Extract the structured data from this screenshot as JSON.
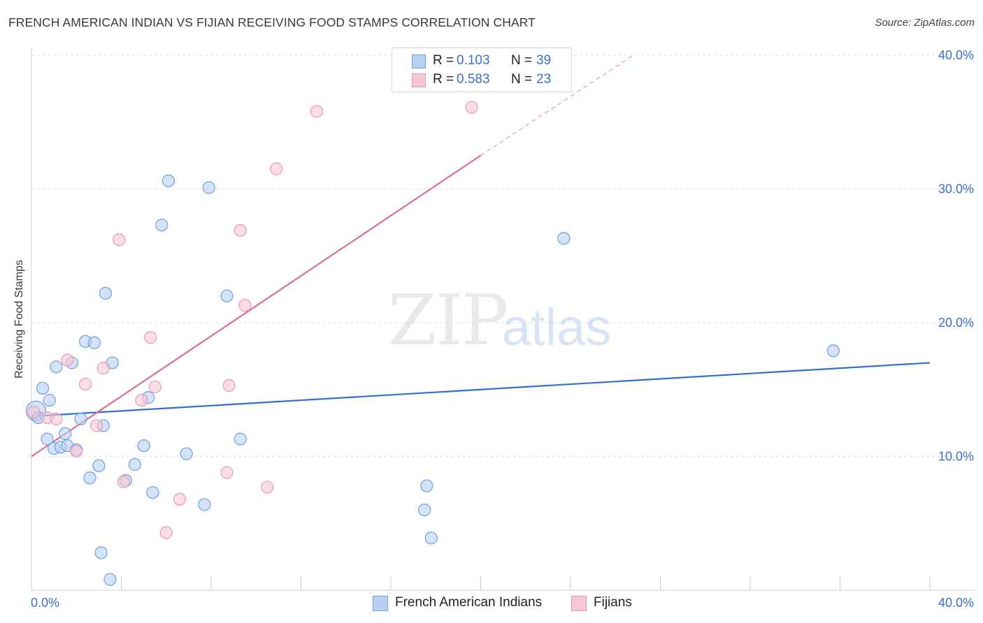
{
  "title": "FRENCH AMERICAN INDIAN VS FIJIAN RECEIVING FOOD STAMPS CORRELATION CHART",
  "source": "Source: ZipAtlas.com",
  "watermark": {
    "zip": "ZIP",
    "atlas": "atlas"
  },
  "legend_top": {
    "rows": [
      {
        "r_label": "R =",
        "r_value": "0.103",
        "n_label": "N =",
        "n_value": "39"
      },
      {
        "r_label": "R =",
        "r_value": "0.583",
        "n_label": "N =",
        "n_value": "23"
      }
    ]
  },
  "legend_bottom": {
    "items": [
      {
        "label": "French American Indians"
      },
      {
        "label": "Fijians"
      }
    ]
  },
  "colors": {
    "blue_fill": "#b7d1f2",
    "blue_stroke": "#6f9fdc",
    "blue_line": "#2f6fd0",
    "pink_fill": "#f7c6d6",
    "pink_stroke": "#e89ab3",
    "pink_line": "#e06b93",
    "grid": "#dddddd",
    "axis_label": "#3b6fc9"
  },
  "chart_data": {
    "type": "scatter",
    "title": "FRENCH AMERICAN INDIAN VS FIJIAN RECEIVING FOOD STAMPS CORRELATION CHART",
    "xlabel": "",
    "ylabel": "Receiving Food Stamps",
    "xlim": [
      0,
      40
    ],
    "ylim": [
      0,
      40
    ],
    "x_tick_labels": [
      "0.0%",
      "40.0%"
    ],
    "y_ticks": [
      10,
      20,
      30,
      40
    ],
    "y_tick_labels": [
      "10.0%",
      "20.0%",
      "30.0%",
      "40.0%"
    ],
    "series": [
      {
        "name": "French American Indians",
        "r": 0.103,
        "n": 39,
        "trend": {
          "x0": 0,
          "y0": 13.0,
          "x1": 40,
          "y1": 17.0
        },
        "points": [
          [
            0.2,
            13.4
          ],
          [
            0.3,
            12.9
          ],
          [
            0.5,
            15.1
          ],
          [
            0.7,
            11.3
          ],
          [
            0.8,
            14.2
          ],
          [
            1.0,
            10.6
          ],
          [
            1.1,
            16.7
          ],
          [
            1.3,
            10.7
          ],
          [
            1.5,
            11.7
          ],
          [
            1.6,
            10.8
          ],
          [
            1.8,
            17.0
          ],
          [
            2.0,
            10.5
          ],
          [
            2.2,
            12.8
          ],
          [
            2.4,
            18.6
          ],
          [
            2.6,
            8.4
          ],
          [
            2.8,
            18.5
          ],
          [
            3.0,
            9.3
          ],
          [
            3.1,
            2.8
          ],
          [
            3.2,
            12.3
          ],
          [
            3.3,
            22.2
          ],
          [
            3.5,
            0.8
          ],
          [
            3.6,
            17.0
          ],
          [
            4.2,
            8.2
          ],
          [
            4.6,
            9.4
          ],
          [
            5.0,
            10.8
          ],
          [
            5.2,
            14.4
          ],
          [
            5.4,
            7.3
          ],
          [
            5.8,
            27.3
          ],
          [
            6.1,
            30.6
          ],
          [
            6.9,
            10.2
          ],
          [
            7.7,
            6.4
          ],
          [
            7.9,
            30.1
          ],
          [
            8.7,
            22.0
          ],
          [
            9.3,
            11.3
          ],
          [
            17.5,
            6.0
          ],
          [
            17.6,
            7.8
          ],
          [
            17.8,
            3.9
          ],
          [
            23.7,
            26.3
          ],
          [
            35.7,
            17.9
          ]
        ]
      },
      {
        "name": "Fijians",
        "r": 0.583,
        "n": 23,
        "trend": {
          "x0": 0,
          "y0": 10.0,
          "x1": 20,
          "y1": 32.5,
          "x_dash_end": 26.8,
          "y_dash_end": 40.0
        },
        "points": [
          [
            0.1,
            13.3
          ],
          [
            0.7,
            12.9
          ],
          [
            1.1,
            12.8
          ],
          [
            1.6,
            17.2
          ],
          [
            2.0,
            10.4
          ],
          [
            2.4,
            15.4
          ],
          [
            2.9,
            12.3
          ],
          [
            3.2,
            16.6
          ],
          [
            3.9,
            26.2
          ],
          [
            4.1,
            8.1
          ],
          [
            4.9,
            14.2
          ],
          [
            5.3,
            18.9
          ],
          [
            5.5,
            15.2
          ],
          [
            6.0,
            4.3
          ],
          [
            6.6,
            6.8
          ],
          [
            8.7,
            8.8
          ],
          [
            8.8,
            15.3
          ],
          [
            9.3,
            26.9
          ],
          [
            9.5,
            21.3
          ],
          [
            10.5,
            7.7
          ],
          [
            10.9,
            31.5
          ],
          [
            12.7,
            35.8
          ],
          [
            19.6,
            36.1
          ]
        ]
      }
    ]
  }
}
